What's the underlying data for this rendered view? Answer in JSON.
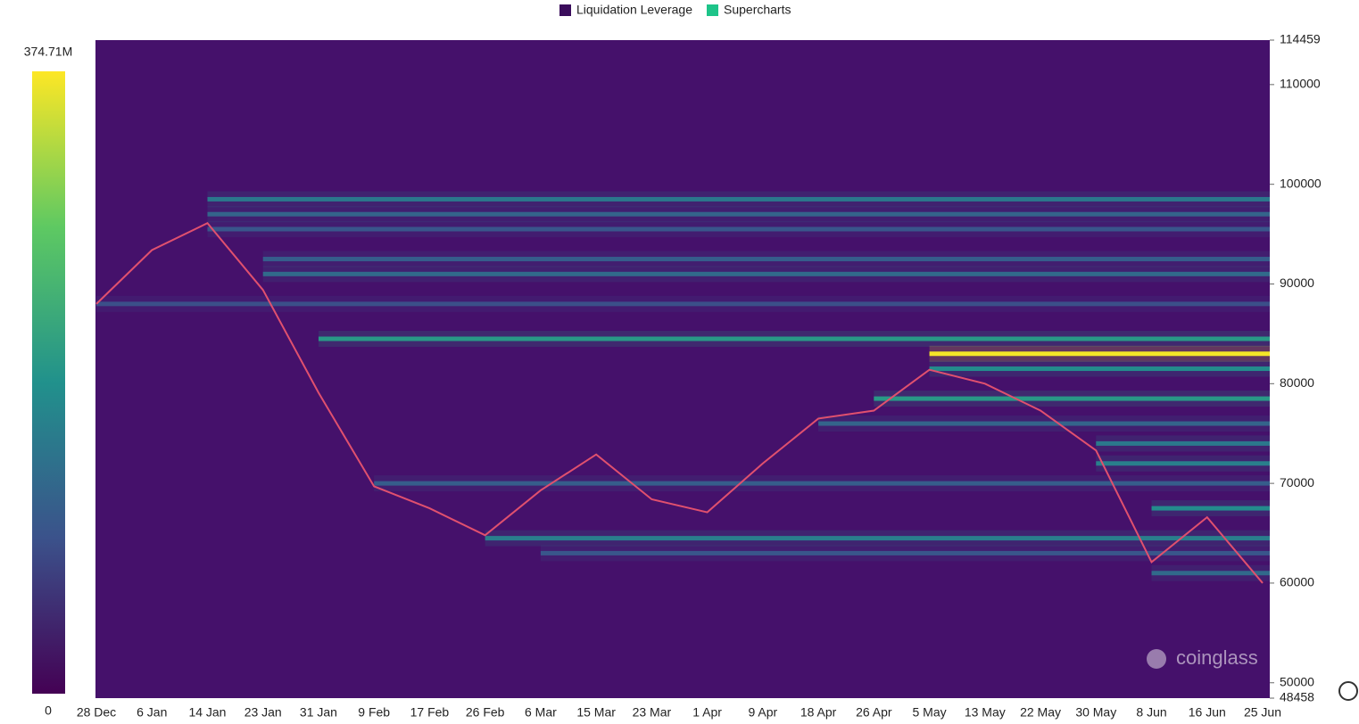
{
  "chart_data": {
    "type": "heatmap",
    "legend": [
      {
        "name": "Liquidation Leverage",
        "color": "#3b0d5c"
      },
      {
        "name": "Supercharts",
        "color": "#1ec489"
      }
    ],
    "categories": [
      "28 Dec",
      "6 Jan",
      "14 Jan",
      "23 Jan",
      "31 Jan",
      "9 Feb",
      "17 Feb",
      "26 Feb",
      "6 Mar",
      "15 Mar",
      "23 Mar",
      "1 Apr",
      "9 Apr",
      "18 Apr",
      "26 Apr",
      "5 May",
      "13 May",
      "22 May",
      "30 May",
      "8 Jun",
      "16 Jun",
      "25 Jun"
    ],
    "ylim": [
      48458,
      114459
    ],
    "yticks": [
      114459,
      110000,
      100000,
      90000,
      80000,
      70000,
      60000,
      50000,
      48458
    ],
    "zlim": [
      0,
      374710000
    ],
    "zticks": [
      {
        "value": 374710000,
        "label": "374.71M"
      },
      0
    ],
    "series": [
      {
        "name": "Supercharts",
        "color": "#e0506e",
        "values": [
          88000,
          93400,
          96100,
          89400,
          79100,
          69700,
          67500,
          64800,
          69300,
          72900,
          68400,
          67100,
          72000,
          76500,
          77300,
          81400,
          80000,
          77300,
          73300,
          62100,
          66600,
          60000
        ]
      }
    ],
    "heatmap": {
      "levels": [
        98500,
        97000,
        95500,
        92500,
        91000,
        88000,
        84500,
        83000,
        81500,
        78500,
        76000,
        74000,
        72000,
        70000,
        67500,
        64500,
        63000,
        61000
      ],
      "starts": [
        "14 Jan",
        "14 Jan",
        "14 Jan",
        "23 Jan",
        "23 Jan",
        "28 Dec",
        "31 Jan",
        "5 May",
        "5 May",
        "26 Apr",
        "18 Apr",
        "30 May",
        "30 May",
        "9 Feb",
        "8 Jun",
        "26 Feb",
        "6 Mar",
        "8 Jun"
      ],
      "values": [
        150000000,
        120000000,
        100000000,
        110000000,
        130000000,
        90000000,
        200000000,
        370000000,
        180000000,
        200000000,
        120000000,
        150000000,
        160000000,
        110000000,
        180000000,
        160000000,
        100000000,
        130000000
      ]
    },
    "watermark": "coinglass"
  }
}
